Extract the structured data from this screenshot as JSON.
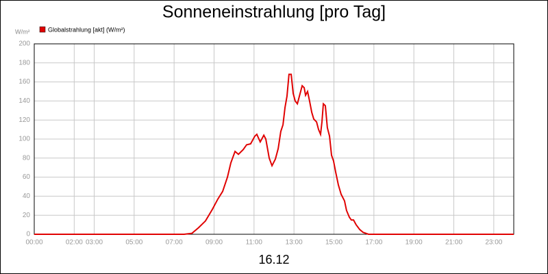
{
  "chart_data": {
    "type": "line",
    "title": "Sonneneinstrahlung [pro Tag]",
    "ylabel": "W/m²",
    "xlabel": "16.12",
    "x": [
      0,
      7.5,
      7.89,
      8.23,
      8.57,
      8.91,
      9.19,
      9.43,
      9.67,
      9.84,
      10.05,
      10.22,
      10.46,
      10.63,
      10.83,
      11.04,
      11.14,
      11.31,
      11.49,
      11.59,
      11.76,
      11.9,
      12.07,
      12.21,
      12.34,
      12.45,
      12.55,
      12.65,
      12.75,
      12.86,
      12.96,
      13.06,
      13.17,
      13.27,
      13.41,
      13.51,
      13.58,
      13.68,
      13.78,
      13.89,
      13.99,
      14.13,
      14.23,
      14.33,
      14.4,
      14.47,
      14.57,
      14.67,
      14.78,
      14.88,
      14.98,
      15.09,
      15.22,
      15.36,
      15.53,
      15.63,
      15.77,
      15.87,
      15.98,
      16.11,
      16.29,
      16.46,
      16.73,
      24
    ],
    "series": [
      {
        "name": "Globalstrahlung [akt] (W/m²)",
        "color": "#e00000",
        "values": [
          0,
          0,
          1,
          7,
          14,
          26,
          37,
          45,
          60,
          75,
          87,
          84,
          89,
          94,
          95,
          103,
          105,
          97,
          104,
          100,
          80,
          72,
          79,
          90,
          108,
          115,
          133,
          145,
          168,
          168,
          148,
          140,
          137,
          145,
          156,
          154,
          146,
          150,
          140,
          128,
          121,
          118,
          110,
          105,
          118,
          137,
          135,
          112,
          103,
          83,
          77,
          65,
          52,
          42,
          35,
          25,
          18,
          15,
          15,
          10,
          5,
          2,
          0,
          0
        ]
      }
    ],
    "xlim": [
      0,
      24
    ],
    "xticks": [
      {
        "value": 0,
        "label": "00:00"
      },
      {
        "value": 2,
        "label": "02:00"
      },
      {
        "value": 3,
        "label": "03:00"
      },
      {
        "value": 5,
        "label": "05:00"
      },
      {
        "value": 7,
        "label": "07:00"
      },
      {
        "value": 9,
        "label": "09:00"
      },
      {
        "value": 11,
        "label": "11:00"
      },
      {
        "value": 13,
        "label": "13:00"
      },
      {
        "value": 15,
        "label": "15:00"
      },
      {
        "value": 17,
        "label": "17:00"
      },
      {
        "value": 19,
        "label": "19:00"
      },
      {
        "value": 21,
        "label": "21:00"
      },
      {
        "value": 23,
        "label": "23:00"
      }
    ],
    "ylim": [
      0,
      200
    ],
    "yticks": [
      0,
      20,
      40,
      60,
      80,
      100,
      120,
      140,
      160,
      180,
      200
    ],
    "grid": true
  }
}
